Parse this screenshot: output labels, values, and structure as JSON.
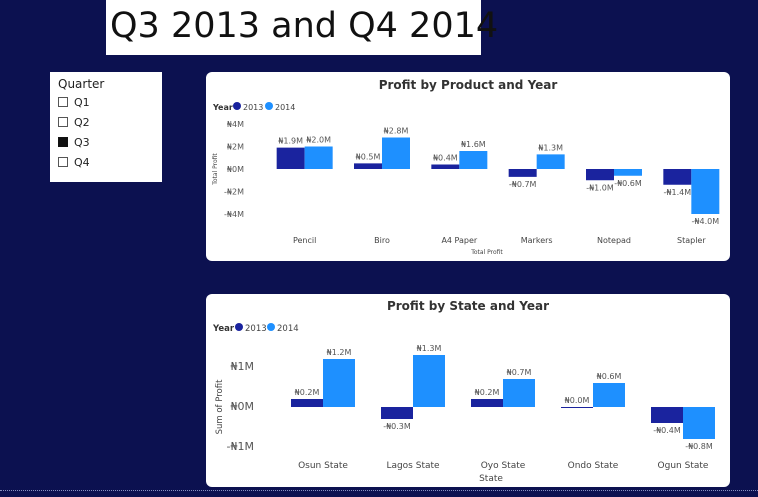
{
  "header": {
    "title": "Q3 2013 and Q4 2014"
  },
  "slicer": {
    "title": "Quarter",
    "items": [
      {
        "label": "Q1",
        "checked": false
      },
      {
        "label": "Q2",
        "checked": false
      },
      {
        "label": "Q3",
        "checked": true
      },
      {
        "label": "Q4",
        "checked": false
      }
    ]
  },
  "colors": {
    "series2013": "#1a239e",
    "series2014": "#1e90ff"
  },
  "chart_data": [
    {
      "type": "bar",
      "title": "Profit by Product and Year",
      "legend_title": "Year",
      "xlabel": "Total Profit",
      "ylabel": "Total Profit",
      "yticks": [
        "₦4M",
        "₦2M",
        "₦0M",
        "-₦2M",
        "-₦4M"
      ],
      "ylim": [
        -4,
        4
      ],
      "categories": [
        "Pencil",
        "Biro",
        "A4 Paper",
        "Markers",
        "Notepad",
        "Stapler"
      ],
      "series": [
        {
          "name": "2013",
          "values": [
            1.9,
            0.5,
            0.4,
            -0.7,
            -1.0,
            -1.4
          ],
          "labels": [
            "₦1.9M",
            "₦0.5M",
            "₦0.4M",
            "-₦0.7M",
            "-₦1.0M",
            "-₦1.4M"
          ]
        },
        {
          "name": "2014",
          "values": [
            2.0,
            2.8,
            1.6,
            1.3,
            -0.6,
            -4.0
          ],
          "labels": [
            "₦2.0M",
            "₦2.8M",
            "₦1.6M",
            "₦1.3M",
            "-₦0.6M",
            "-₦4.0M"
          ]
        }
      ],
      "legend": "top-left"
    },
    {
      "type": "bar",
      "title": "Profit by State and Year",
      "legend_title": "Year",
      "xlabel": "State",
      "ylabel": "Sum of Profit",
      "yticks": [
        "₦1M",
        "₦0M",
        "-₦1M"
      ],
      "ylim": [
        -1,
        1
      ],
      "categories": [
        "Osun State",
        "Lagos State",
        "Oyo State",
        "Ondo State",
        "Ogun State"
      ],
      "series": [
        {
          "name": "2013",
          "values": [
            0.2,
            -0.3,
            0.2,
            0.0,
            -0.4
          ],
          "labels": [
            "₦0.2M",
            "-₦0.3M",
            "₦0.2M",
            "₦0.0M",
            "-₦0.4M"
          ]
        },
        {
          "name": "2014",
          "values": [
            1.2,
            1.3,
            0.7,
            0.6,
            -0.8
          ],
          "labels": [
            "₦1.2M",
            "₦1.3M",
            "₦0.7M",
            "₦0.6M",
            "-₦0.8M"
          ]
        }
      ],
      "legend": "top-left"
    }
  ]
}
